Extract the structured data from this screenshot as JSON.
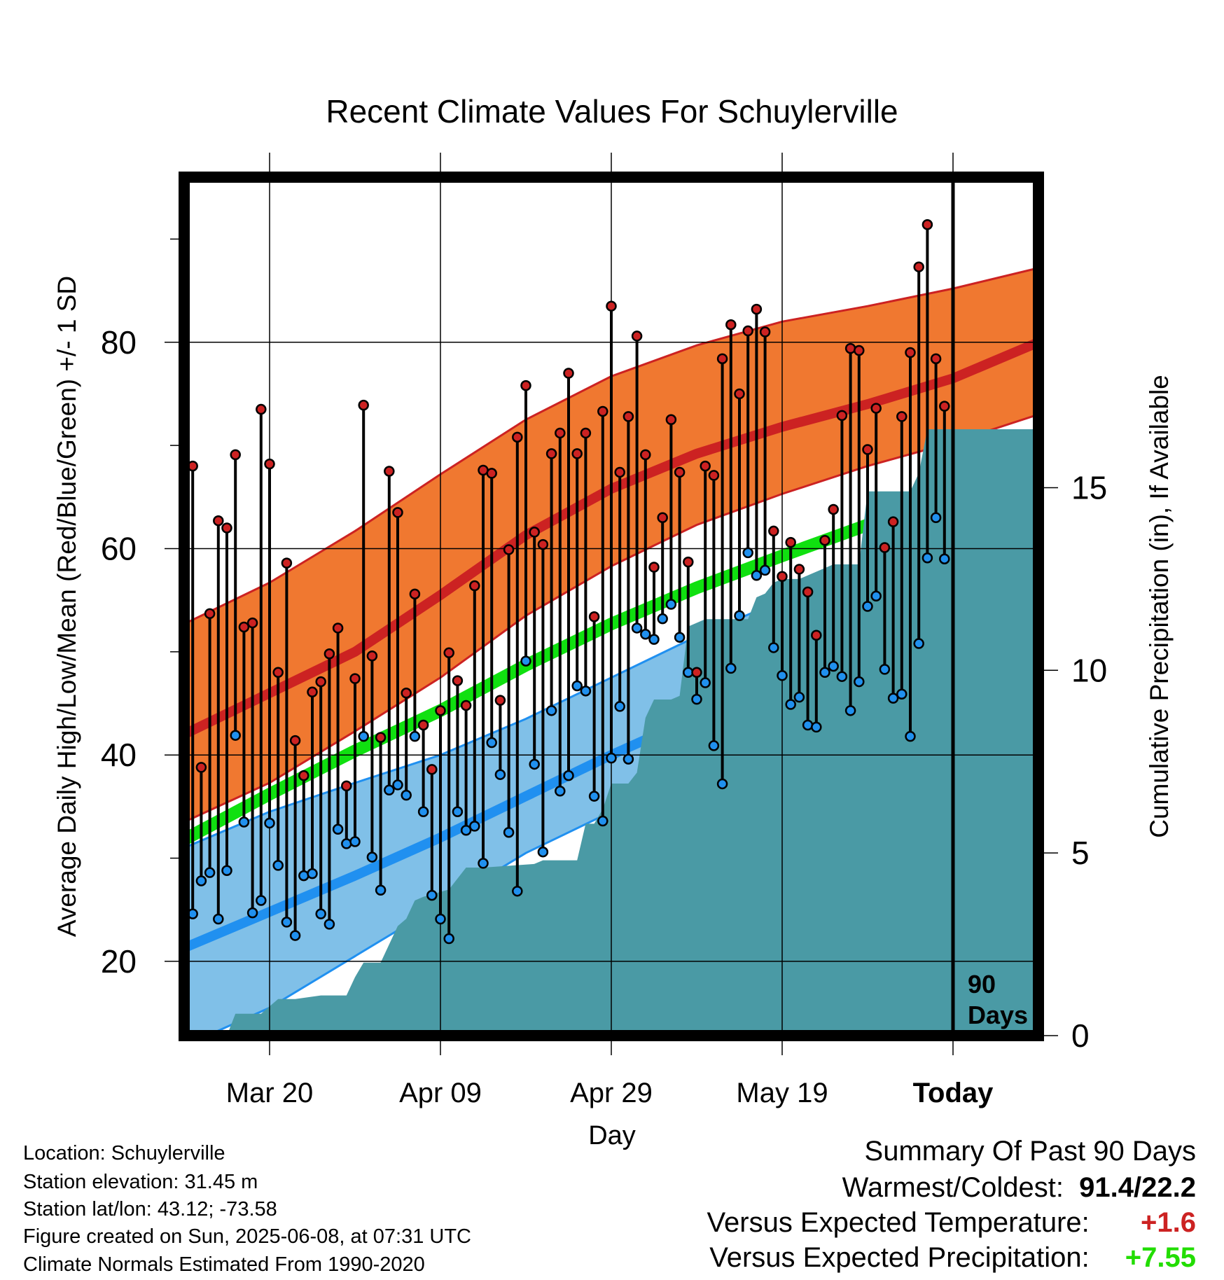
{
  "chart_data": {
    "type": "line",
    "title": "Recent Climate Values For Schuylerville",
    "xlabel": "Day",
    "ylabel": "Average Daily High/Low/Mean (Red/Blue/Green) +/- 1 SD",
    "y2label": "Cumulative Precipitation (in), If Available",
    "ylim": [
      12.8,
      96
    ],
    "y2lim": [
      0,
      23.5
    ],
    "yticks": [
      "20",
      "40",
      "60",
      "80"
    ],
    "y2ticks": [
      "0",
      "5",
      "10",
      "15"
    ],
    "xlim": [
      1,
      101
    ],
    "xticks": [
      {
        "day": 11,
        "label": "Mar 20"
      },
      {
        "day": 31,
        "label": "Apr 09"
      },
      {
        "day": 51,
        "label": "Apr 29"
      },
      {
        "day": 71,
        "label": "May 19"
      },
      {
        "day": 91,
        "label": "Today"
      }
    ],
    "today_marker_label": "90 Days",
    "grid": true,
    "colors": {
      "high_band": "#f07830",
      "high_line": "#cc2222",
      "low_band": "#80c0e8",
      "low_line": "#2090f0",
      "mean_line": "#10e010",
      "precip_area": "#4a9aa5",
      "high_marker": "#cc2222",
      "low_marker": "#2090ee"
    },
    "normals": {
      "days": [
        1,
        11,
        21,
        31,
        41,
        51,
        61,
        71,
        81,
        91,
        101
      ],
      "high_mean": [
        42,
        46,
        50,
        55.5,
        61.3,
        65.8,
        69.2,
        71.8,
        74,
        76.5,
        80
      ],
      "high_upper": [
        52.7,
        56.7,
        61.7,
        67.2,
        72.5,
        76.7,
        79.7,
        82,
        83.5,
        85.2,
        87.2
      ],
      "high_lower": [
        33.5,
        37.3,
        42.3,
        47.5,
        53.5,
        58.3,
        62.3,
        65.3,
        68,
        70.3,
        73
      ],
      "mean": [
        31.8,
        36.2,
        40.4,
        44.3,
        48.7,
        52.7,
        56.2,
        59.3,
        62.3,
        65.3,
        68.3
      ],
      "low_mean": [
        21.3,
        24.8,
        28.3,
        32,
        36,
        40,
        43.7,
        47,
        50.5,
        53.7,
        56.5
      ],
      "low_upper": [
        31,
        34.5,
        37.3,
        40,
        43.5,
        47.5,
        51.5,
        55,
        57.8,
        60.5,
        63
      ],
      "low_lower": [
        11.8,
        15.5,
        20.5,
        25.5,
        30.5,
        34.5,
        38.5,
        41.5,
        45,
        48,
        51
      ]
    },
    "series": [
      {
        "name": "High",
        "values": [
          56.5,
          68,
          38.8,
          53.7,
          62.7,
          62,
          69.1,
          52.4,
          52.8,
          73.5,
          68.2,
          48,
          58.6,
          41.4,
          38,
          46.1,
          47.1,
          49.8,
          52.3,
          37,
          47.4,
          73.9,
          49.6,
          41.7,
          67.5,
          63.5,
          46,
          55.6,
          42.9,
          38.6,
          44.3,
          49.9,
          47.2,
          44.8,
          56.4,
          67.6,
          67.3,
          45.3,
          59.9,
          70.8,
          75.8,
          61.6,
          60.4,
          69.2,
          71.2,
          77,
          69.2,
          71.2,
          53.4,
          73.3,
          83.5,
          67.4,
          72.8,
          80.6,
          69.1,
          58.2,
          63,
          72.5,
          67.4,
          58.7,
          48,
          68,
          67.1,
          78.4,
          81.7,
          75,
          81.1,
          83.2,
          81,
          61.7,
          57.3,
          60.6,
          58,
          55.8,
          51.6,
          60.8,
          63.8,
          72.9,
          79.4,
          79.2,
          69.6,
          73.6,
          60.1,
          62.6,
          72.8,
          79,
          87.3,
          91.4,
          78.4,
          73.8
        ]
      },
      {
        "name": "Low",
        "values": [
          25.6,
          24.6,
          27.8,
          28.6,
          24.1,
          28.8,
          41.9,
          33.5,
          24.7,
          25.9,
          33.4,
          29.3,
          23.8,
          22.5,
          28.3,
          28.5,
          24.6,
          23.6,
          32.8,
          31.4,
          31.6,
          41.8,
          30.1,
          26.9,
          36.6,
          37.1,
          36.1,
          41.8,
          34.5,
          26.4,
          24.1,
          22.2,
          34.5,
          32.7,
          33.1,
          29.5,
          41.2,
          38.1,
          32.5,
          26.8,
          49.1,
          39.1,
          30.6,
          44.3,
          36.5,
          38,
          46.7,
          46.2,
          36,
          33.6,
          39.7,
          44.7,
          39.6,
          52.3,
          51.7,
          51.2,
          53.2,
          54.6,
          51.4,
          48,
          45.4,
          47,
          40.9,
          37.2,
          48.4,
          53.5,
          59.6,
          57.4,
          57.9,
          50.4,
          47.7,
          44.9,
          45.6,
          42.9,
          42.7,
          48,
          48.6,
          47.6,
          44.3,
          47.1,
          54.4,
          55.4,
          48.3,
          45.5,
          45.9,
          41.8,
          50.8,
          59.1,
          63,
          59
        ]
      }
    ],
    "precip": {
      "days": [
        1,
        6,
        7,
        10,
        12,
        14,
        17,
        20,
        21,
        22,
        24,
        25,
        26,
        27,
        28,
        29,
        32,
        34,
        36,
        42,
        43,
        47,
        48,
        49,
        50,
        51,
        53,
        54,
        55,
        56,
        58,
        59,
        60,
        62,
        63,
        67,
        68,
        69,
        70,
        71,
        73,
        77,
        78,
        79,
        80,
        81,
        82,
        86,
        87,
        88,
        89,
        90,
        91,
        101
      ],
      "values": [
        0,
        0,
        0.6,
        0.6,
        1.0,
        1.0,
        1.1,
        1.1,
        1.6,
        2.0,
        2.0,
        2.5,
        3.0,
        3.2,
        3.7,
        3.8,
        4.0,
        4.6,
        4.6,
        4.7,
        4.8,
        4.8,
        5.8,
        5.8,
        6.2,
        6.9,
        6.9,
        7.2,
        8.7,
        9.2,
        9.2,
        9.3,
        11.2,
        11.4,
        11.4,
        11.4,
        12.0,
        12.1,
        12.4,
        12.5,
        12.5,
        12.9,
        12.9,
        12.9,
        12.9,
        14.9,
        14.9,
        14.9,
        15.4,
        16.6,
        16.6,
        16.6,
        16.6,
        16.6
      ]
    }
  },
  "info": {
    "location": "Location: Schuylerville",
    "elevation": "Station elevation: 31.45 m",
    "latlon": "Station lat/lon: 43.12; -73.58",
    "created": "Figure created on Sun, 2025-06-08, at 07:31 UTC",
    "normals": "Climate Normals Estimated From 1990-2020"
  },
  "summary": {
    "title": "Summary Of Past 90 Days",
    "warmest_coldest_label": "Warmest/Coldest:",
    "warmest_coldest_value": "91.4/22.2",
    "temp_label": "Versus Expected Temperature:",
    "temp_value": "+1.6",
    "precip_label": "Versus Expected Precipitation:",
    "precip_value": "+7.55"
  }
}
